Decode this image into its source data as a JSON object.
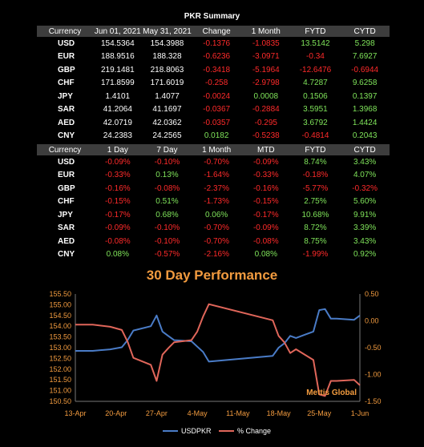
{
  "summary_title": "PKR Summary",
  "table1": {
    "headers": [
      "Currency",
      "Jun 01, 2021",
      "May 31, 2021",
      "Change",
      "1 Month",
      "FYTD",
      "CYTD"
    ],
    "rows": [
      {
        "cur": "USD",
        "v": [
          "154.5364",
          "154.3988",
          "-0.1376",
          "-1.0835",
          "13.5142",
          "5.298"
        ]
      },
      {
        "cur": "EUR",
        "v": [
          "188.9516",
          "188.328",
          "-0.6236",
          "-3.0971",
          "-0.34",
          "7.6927"
        ]
      },
      {
        "cur": "GBP",
        "v": [
          "219.1481",
          "218.8063",
          "-0.3418",
          "-5.1964",
          "-12.6476",
          "-0.6944"
        ]
      },
      {
        "cur": "CHF",
        "v": [
          "171.8599",
          "171.6019",
          "-0.258",
          "-2.9798",
          "4.7287",
          "9.6258"
        ]
      },
      {
        "cur": "JPY",
        "v": [
          "1.4101",
          "1.4077",
          "-0.0024",
          "0.0008",
          "0.1506",
          "0.1397"
        ]
      },
      {
        "cur": "SAR",
        "v": [
          "41.2064",
          "41.1697",
          "-0.0367",
          "-0.2884",
          "3.5951",
          "1.3968"
        ]
      },
      {
        "cur": "AED",
        "v": [
          "42.0719",
          "42.0362",
          "-0.0357",
          "-0.295",
          "3.6792",
          "1.4424"
        ]
      },
      {
        "cur": "CNY",
        "v": [
          "24.2383",
          "24.2565",
          "0.0182",
          "-0.5238",
          "-0.4814",
          "0.2043"
        ]
      }
    ]
  },
  "table2": {
    "headers": [
      "Currency",
      "1 Day",
      "7 Day",
      "1 Month",
      "MTD",
      "FYTD",
      "CYTD"
    ],
    "rows": [
      {
        "cur": "USD",
        "v": [
          "-0.09%",
          "-0.10%",
          "-0.70%",
          "-0.09%",
          "8.74%",
          "3.43%"
        ]
      },
      {
        "cur": "EUR",
        "v": [
          "-0.33%",
          "0.13%",
          "-1.64%",
          "-0.33%",
          "-0.18%",
          "4.07%"
        ]
      },
      {
        "cur": "GBP",
        "v": [
          "-0.16%",
          "-0.08%",
          "-2.37%",
          "-0.16%",
          "-5.77%",
          "-0.32%"
        ]
      },
      {
        "cur": "CHF",
        "v": [
          "-0.15%",
          "0.51%",
          "-1.73%",
          "-0.15%",
          "2.75%",
          "5.60%"
        ]
      },
      {
        "cur": "JPY",
        "v": [
          "-0.17%",
          "0.68%",
          "0.06%",
          "-0.17%",
          "10.68%",
          "9.91%"
        ]
      },
      {
        "cur": "SAR",
        "v": [
          "-0.09%",
          "-0.10%",
          "-0.70%",
          "-0.09%",
          "8.72%",
          "3.39%"
        ]
      },
      {
        "cur": "AED",
        "v": [
          "-0.08%",
          "-0.10%",
          "-0.70%",
          "-0.08%",
          "8.75%",
          "3.43%"
        ]
      },
      {
        "cur": "CNY",
        "v": [
          "0.08%",
          "-0.57%",
          "-2.16%",
          "0.08%",
          "-1.99%",
          "0.92%"
        ]
      }
    ]
  },
  "colors": {
    "positive": "#7fe35a",
    "negative": "#ff2a2a",
    "header_bg": "#3d3d3d",
    "usd_line": "#4a7cc7",
    "pct_line": "#e0665a",
    "axis_text": "#f29b3f"
  },
  "chart_data": {
    "type": "line",
    "title": "30 Day Performance",
    "watermark": "Mettis Global",
    "x_ticks": [
      "13-Apr",
      "20-Apr",
      "27-Apr",
      "4-May",
      "11-May",
      "18-May",
      "25-May",
      "1-Jun"
    ],
    "x_range": [
      "2021-04-13",
      "2021-06-01"
    ],
    "left_axis": {
      "min": 150.5,
      "max": 155.5,
      "ticks": [
        "150.50",
        "151.00",
        "151.50",
        "152.00",
        "152.50",
        "153.00",
        "153.50",
        "154.00",
        "154.50",
        "155.00",
        "155.50"
      ]
    },
    "right_axis": {
      "min": -1.5,
      "max": 0.5,
      "ticks": [
        "0.50",
        "0.00",
        "-0.50",
        "-1.00",
        "-1.50"
      ]
    },
    "legend_position": "bottom",
    "series": [
      {
        "name": "USDPKR",
        "axis": "left",
        "points": [
          [
            "2021-04-13",
            152.85
          ],
          [
            "2021-04-16",
            152.85
          ],
          [
            "2021-04-19",
            152.92
          ],
          [
            "2021-04-21",
            153.02
          ],
          [
            "2021-04-22",
            153.35
          ],
          [
            "2021-04-23",
            153.8
          ],
          [
            "2021-04-26",
            154.0
          ],
          [
            "2021-04-27",
            154.5
          ],
          [
            "2021-04-28",
            153.75
          ],
          [
            "2021-04-29",
            153.55
          ],
          [
            "2021-04-30",
            153.35
          ],
          [
            "2021-05-03",
            153.3
          ],
          [
            "2021-05-04",
            153.05
          ],
          [
            "2021-05-05",
            152.8
          ],
          [
            "2021-05-06",
            152.35
          ],
          [
            "2021-05-17",
            152.62
          ],
          [
            "2021-05-18",
            153.0
          ],
          [
            "2021-05-19",
            153.2
          ],
          [
            "2021-05-20",
            153.55
          ],
          [
            "2021-05-21",
            153.45
          ],
          [
            "2021-05-24",
            153.75
          ],
          [
            "2021-05-25",
            154.75
          ],
          [
            "2021-05-26",
            154.8
          ],
          [
            "2021-05-27",
            154.35
          ],
          [
            "2021-05-28",
            154.35
          ],
          [
            "2021-05-31",
            154.3
          ],
          [
            "2021-06-01",
            154.5
          ]
        ]
      },
      {
        "name": "% Change",
        "axis": "right",
        "points": [
          [
            "2021-04-13",
            -0.07
          ],
          [
            "2021-04-16",
            -0.07
          ],
          [
            "2021-04-19",
            -0.11
          ],
          [
            "2021-04-21",
            -0.17
          ],
          [
            "2021-04-22",
            -0.39
          ],
          [
            "2021-04-23",
            -0.69
          ],
          [
            "2021-04-26",
            -0.82
          ],
          [
            "2021-04-27",
            -1.12
          ],
          [
            "2021-04-28",
            -0.63
          ],
          [
            "2021-04-29",
            -0.51
          ],
          [
            "2021-04-30",
            -0.4
          ],
          [
            "2021-05-03",
            -0.36
          ],
          [
            "2021-05-04",
            -0.2
          ],
          [
            "2021-05-05",
            0.08
          ],
          [
            "2021-05-06",
            0.31
          ],
          [
            "2021-05-17",
            0.01
          ],
          [
            "2021-05-18",
            -0.28
          ],
          [
            "2021-05-19",
            -0.4
          ],
          [
            "2021-05-20",
            -0.6
          ],
          [
            "2021-05-21",
            -0.53
          ],
          [
            "2021-05-24",
            -0.73
          ],
          [
            "2021-05-25",
            -1.37
          ],
          [
            "2021-05-26",
            -1.4
          ],
          [
            "2021-05-27",
            -1.12
          ],
          [
            "2021-05-28",
            -1.12
          ],
          [
            "2021-05-31",
            -1.1
          ],
          [
            "2021-06-01",
            -1.2
          ]
        ]
      }
    ]
  }
}
